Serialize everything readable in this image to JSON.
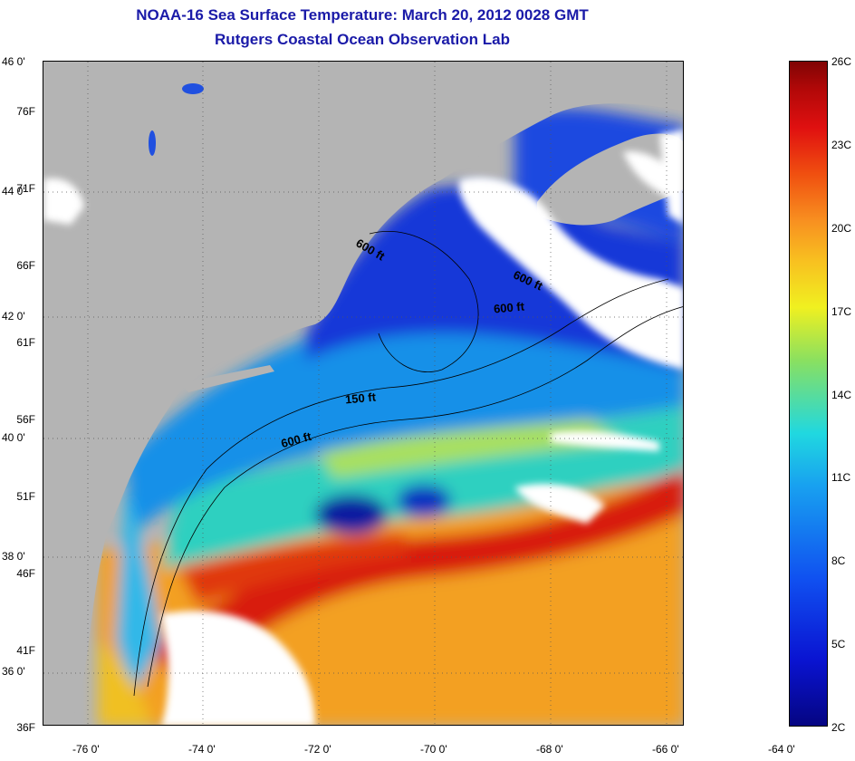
{
  "title": {
    "line1": "NOAA-16 Sea Surface Temperature:  March 20, 2012 0028 GMT",
    "line2": "Rutgers Coastal Ocean Observation Lab"
  },
  "map": {
    "land_color": "#b4b4b4",
    "cloud_color": "#ffffff",
    "latitude_labels": [
      "46 0'",
      "44 0'",
      "42 0'",
      "40 0'",
      "38 0'",
      "36 0'"
    ],
    "longitude_labels": [
      "-76 0'",
      "-74 0'",
      "-72 0'",
      "-70 0'",
      "-68 0'",
      "-66 0'",
      "-64 0'"
    ],
    "contour_labels": [
      "600 ft",
      "600 ft",
      "600 ft",
      "150 ft",
      "600 ft"
    ]
  },
  "colorbar": {
    "fahrenheit_labels": [
      "76F",
      "71F",
      "66F",
      "61F",
      "56F",
      "51F",
      "46F",
      "41F",
      "36F"
    ],
    "celsius_labels": [
      "26C",
      "23C",
      "20C",
      "17C",
      "14C",
      "11C",
      "8C",
      "5C",
      "2C"
    ]
  }
}
